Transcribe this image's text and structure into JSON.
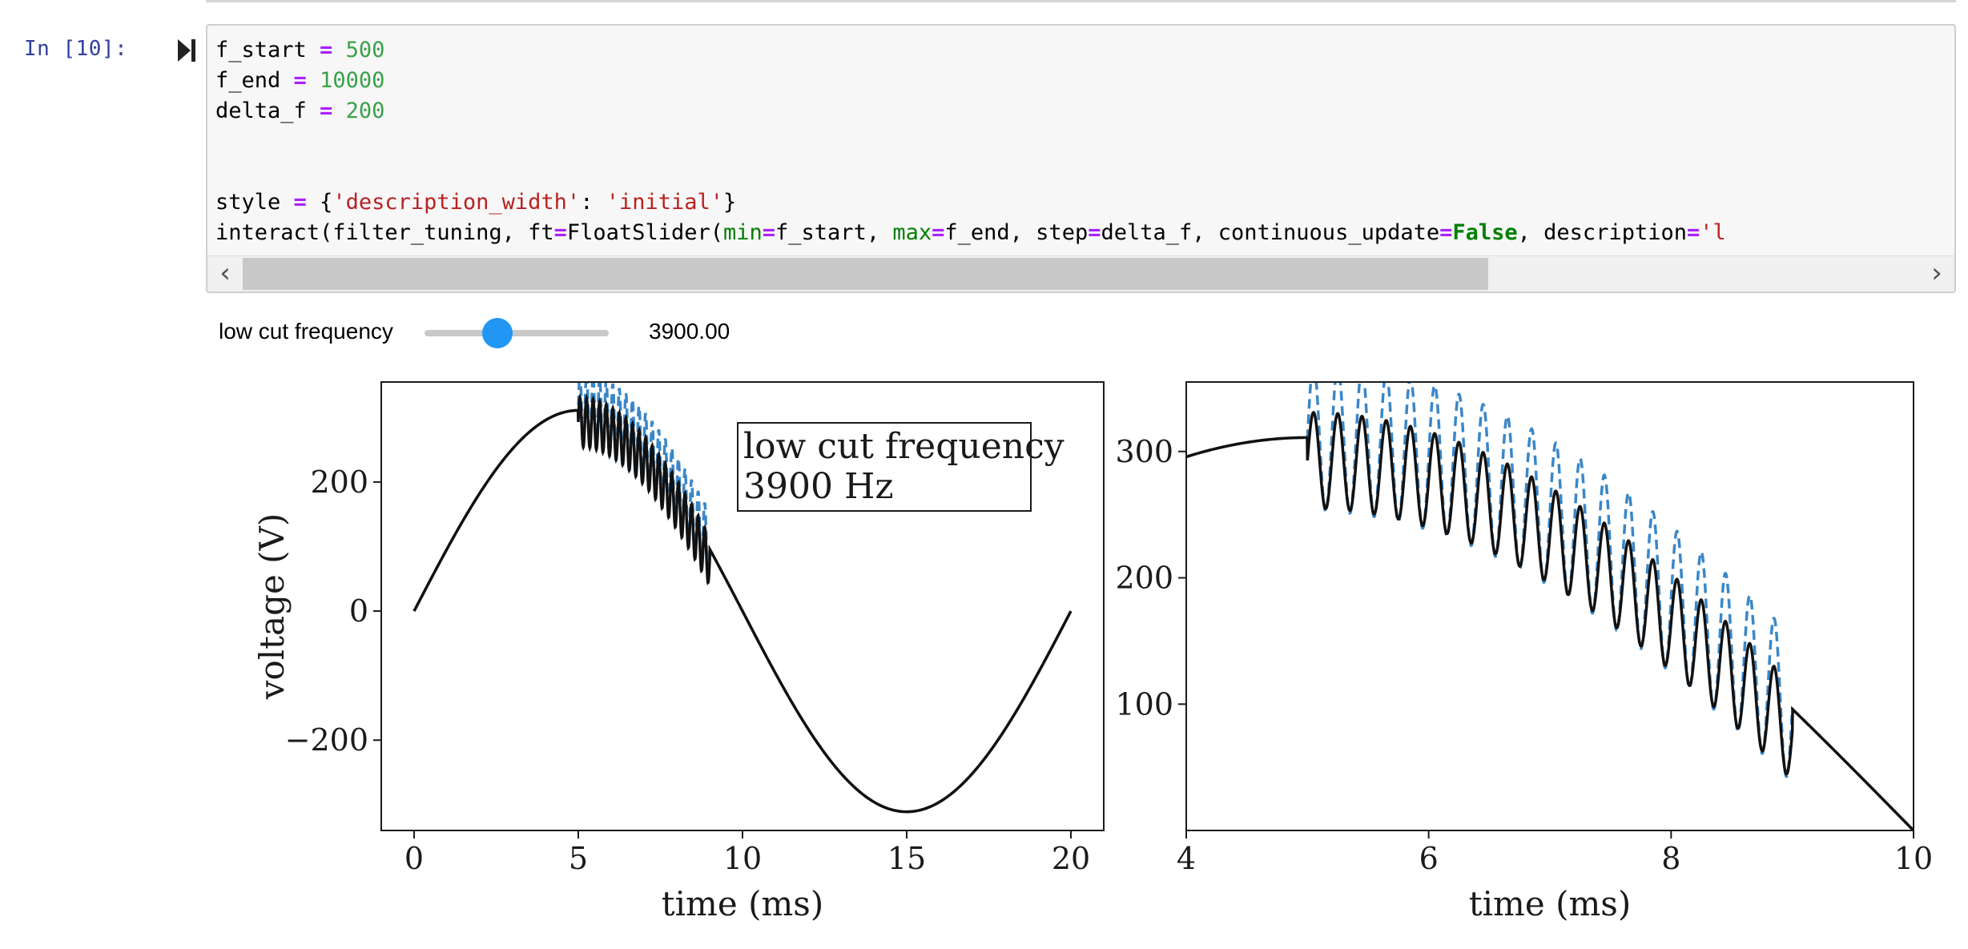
{
  "cell": {
    "prompt": "In [10]:",
    "code_lines": [
      [
        {
          "t": "f_start ",
          "c": ""
        },
        {
          "t": "=",
          "c": "op"
        },
        {
          "t": " ",
          "c": ""
        },
        {
          "t": "500",
          "c": "num"
        }
      ],
      [
        {
          "t": "f_end ",
          "c": ""
        },
        {
          "t": "=",
          "c": "op"
        },
        {
          "t": " ",
          "c": ""
        },
        {
          "t": "10000",
          "c": "num"
        }
      ],
      [
        {
          "t": "delta_f ",
          "c": ""
        },
        {
          "t": "=",
          "c": "op"
        },
        {
          "t": " ",
          "c": ""
        },
        {
          "t": "200",
          "c": "num"
        }
      ],
      [],
      [],
      [
        {
          "t": "style ",
          "c": ""
        },
        {
          "t": "=",
          "c": "op"
        },
        {
          "t": " {",
          "c": ""
        },
        {
          "t": "'description_width'",
          "c": "str"
        },
        {
          "t": ": ",
          "c": ""
        },
        {
          "t": "'initial'",
          "c": "str"
        },
        {
          "t": "}",
          "c": ""
        }
      ],
      [
        {
          "t": "interact(filter_tuning, ft",
          "c": ""
        },
        {
          "t": "=",
          "c": "op"
        },
        {
          "t": "FloatSlider(",
          "c": ""
        },
        {
          "t": "min",
          "c": "kwarg"
        },
        {
          "t": "=",
          "c": "op"
        },
        {
          "t": "f_start, ",
          "c": ""
        },
        {
          "t": "max",
          "c": "kwarg"
        },
        {
          "t": "=",
          "c": "op"
        },
        {
          "t": "f_end, step",
          "c": ""
        },
        {
          "t": "=",
          "c": "op"
        },
        {
          "t": "delta_f, continuous_update",
          "c": ""
        },
        {
          "t": "=",
          "c": "op"
        },
        {
          "t": "False",
          "c": "kw"
        },
        {
          "t": ", description",
          "c": ""
        },
        {
          "t": "=",
          "c": "op"
        },
        {
          "t": "'l",
          "c": "str"
        }
      ]
    ]
  },
  "slider": {
    "label": "low cut frequency",
    "value_text": "3900.00",
    "min": 500,
    "max": 10000,
    "value": 3900
  },
  "colors": {
    "filtered": "#111111",
    "original": "#3a87c8",
    "slider_handle": "#2196f3"
  },
  "chart_data": [
    {
      "type": "line",
      "xlabel": "time (ms)",
      "ylabel": "voltage (V)",
      "xlim": [
        -1,
        21
      ],
      "ylim": [
        -340,
        355
      ],
      "xticks": [
        0,
        5,
        10,
        15,
        20
      ],
      "xtick_labels": [
        "0",
        "5",
        "10",
        "15",
        "20"
      ],
      "yticks": [
        -200,
        0,
        200
      ],
      "ytick_labels": [
        "−200",
        "0",
        "200"
      ],
      "legend_lines": [
        "low cut frequency",
        "3900 Hz"
      ],
      "legend_placement": "top-right",
      "grid": false,
      "signal": {
        "amplitude": 311,
        "frequency_hz": 50,
        "ripple_start_ms": 5,
        "ripple_end_ms": 9,
        "ripple_period_ms": 0.2,
        "ripple_amplitude_filtered": 38,
        "ripple_amplitude_original": 58
      }
    },
    {
      "type": "line",
      "xlabel": "time (ms)",
      "ylabel": "",
      "xlim": [
        4,
        10
      ],
      "ylim": [
        0,
        355
      ],
      "xticks": [
        4,
        6,
        8,
        10
      ],
      "xtick_labels": [
        "4",
        "6",
        "8",
        "10"
      ],
      "yticks": [
        100,
        200,
        300
      ],
      "ytick_labels": [
        "100",
        "200",
        "300"
      ],
      "grid": false
    }
  ]
}
